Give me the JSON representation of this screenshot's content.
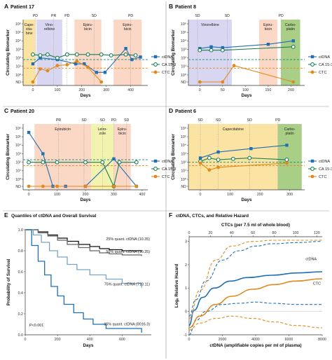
{
  "colors": {
    "ctdna": "#1f6fb2",
    "ca153": "#1a7f52",
    "ctc": "#e08a1e",
    "ca153_threshold": "#178a6a",
    "ctc_threshold": "#e08a1e",
    "capecitabine": "#fbe3a3",
    "vinorelbine": "#d8d6f0",
    "epirubicin": "#fbd7c6",
    "carboplatin": "#a9cf86",
    "letrozole": "#f3f3b0",
    "survival_q25": "#111111",
    "survival_q50": "#666666",
    "survival_q75": "#7aa3c4",
    "survival_q95": "#1f6fb2",
    "hazard_ctdna": "#1f6fb2",
    "hazard_ctc": "#e08a1e"
  },
  "chart_data": [
    {
      "letter": "A",
      "title": "Patient 17",
      "type": "line",
      "xlabel": "Days",
      "ylabel": "Circulating Biomarker",
      "xlim": [
        -40,
        470
      ],
      "xticks": [
        0,
        100,
        200,
        300,
        400
      ],
      "ytick_labels": [
        "ND",
        "10⁰",
        "10¹",
        "10²",
        "10³",
        "10⁴",
        "10⁵",
        "10⁶"
      ],
      "therapies": [
        {
          "label": "Cape-\ncita-\nbine",
          "start": -40,
          "end": 10,
          "color_key": "capecitabine"
        },
        {
          "label": "Vino-\nrelbine",
          "start": 15,
          "end": 120,
          "color_key": "vinorelbine"
        },
        {
          "label": "Epiru-\nbicin",
          "start": 170,
          "end": 280,
          "color_key": "epirubicin"
        },
        {
          "label": "Epiru-\nbicin",
          "start": 330,
          "end": 445,
          "color_key": "epirubicin"
        }
      ],
      "response_markers": [
        {
          "label": "PD",
          "day": 10
        },
        {
          "label": "PR",
          "day": 85
        },
        {
          "label": "PD",
          "day": 140
        },
        {
          "label": "SD",
          "day": 250
        },
        {
          "label": "PD",
          "day": 400
        }
      ],
      "thresholds": {
        "ca153": 1.8,
        "ctc": 0.8
      },
      "series": [
        {
          "name": "ctDNA",
          "color_key": "ctdna",
          "marker": "square",
          "x": [
            0,
            30,
            100,
            175,
            210,
            260,
            295,
            380,
            405,
            440
          ],
          "y": [
            1.3,
            2.0,
            1.8,
            1.3,
            1.3,
            0.3,
            0.3,
            3.1,
            1.8,
            2.1
          ]
        },
        {
          "name": "CA 15-3",
          "color_key": "ca153",
          "marker": "circle-open",
          "x": [
            0,
            30,
            60,
            100,
            140,
            180,
            225,
            280,
            320,
            380,
            420
          ],
          "y": [
            2.4,
            2.3,
            2.4,
            2.0,
            2.4,
            2.4,
            2.4,
            2.4,
            2.3,
            2.4,
            2.3
          ]
        },
        {
          "name": "CTC",
          "color_key": "ctc",
          "marker": "circle",
          "x": [
            0,
            30,
            60,
            100,
            140,
            180,
            225,
            280
          ],
          "y": [
            0,
            0.7,
            0.5,
            1.1,
            1.2,
            1.6,
            0.9,
            0
          ]
        }
      ]
    },
    {
      "letter": "B",
      "title": "Patient 8",
      "type": "line",
      "xlabel": "Days",
      "ylabel": "Circulating Biomarker",
      "xlim": [
        -25,
        230
      ],
      "xticks": [
        0,
        50,
        100,
        150,
        200
      ],
      "ytick_labels": [
        "ND",
        "10⁰",
        "10¹",
        "10²",
        "10³",
        "10⁴",
        "10⁵",
        "10⁶"
      ],
      "therapies": [
        {
          "label": "Vinorelbine",
          "start": -25,
          "end": 70,
          "color_key": "vinorelbine"
        },
        {
          "label": "Epiru-\nbicin",
          "start": 130,
          "end": 170,
          "color_key": "epirubicin"
        },
        {
          "label": "Carbo-\nplatin",
          "start": 178,
          "end": 220,
          "color_key": "carboplatin"
        }
      ],
      "response_markers": [
        {
          "label": "SD",
          "day": -5
        },
        {
          "label": "SD",
          "day": 60
        },
        {
          "label": "PD",
          "day": 178
        }
      ],
      "thresholds": {
        "ca153": 1.8,
        "ctc": 0.8
      },
      "series": [
        {
          "name": "ctDNA",
          "color_key": "ctdna",
          "marker": "square",
          "x": [
            0,
            25,
            50,
            150,
            205
          ],
          "y": [
            3.1,
            3.3,
            3.2,
            3.6,
            4.0
          ]
        },
        {
          "name": "CA 15-3",
          "color_key": "ca153",
          "marker": "circle-open",
          "x": [
            0,
            25,
            50,
            205
          ],
          "y": [
            2.9,
            2.9,
            2.9,
            3.3
          ]
        },
        {
          "name": "CTC",
          "color_key": "ctc",
          "marker": "circle",
          "x": [
            0,
            50,
            75,
            205
          ],
          "y": [
            0,
            0,
            1.1,
            0
          ]
        }
      ]
    },
    {
      "letter": "C",
      "title": "Patient 20",
      "type": "line",
      "xlabel": "Days",
      "ylabel": "Circulating Biomarker",
      "xlim": [
        -20,
        420
      ],
      "xticks": [
        0,
        100,
        200,
        300,
        400
      ],
      "ytick_labels": [
        "ND",
        "10⁰",
        "10¹",
        "10²",
        "10³",
        "10⁴",
        "10⁵",
        "10⁶"
      ],
      "therapies": [
        {
          "label": "Epirubicin",
          "start": 20,
          "end": 220,
          "color_key": "epirubicin"
        },
        {
          "label": "Letro-\nzole",
          "start": 220,
          "end": 300,
          "color_key": "letrozole"
        },
        {
          "label": "Epiru-\nbicin",
          "start": 300,
          "end": 360,
          "color_key": "epirubicin"
        }
      ],
      "response_markers": [
        {
          "label": "PR",
          "day": 105
        },
        {
          "label": "SD",
          "day": 195
        },
        {
          "label": "SD",
          "day": 260
        },
        {
          "label": "PD",
          "day": 300
        },
        {
          "label": "SD",
          "day": 345
        }
      ],
      "thresholds": {
        "ca153": 2.3,
        "ctc": 1.6
      },
      "series": [
        {
          "name": "ctDNA",
          "color_key": "ctdna",
          "marker": "square",
          "x": [
            0,
            50,
            85,
            130,
            200,
            300,
            380
          ],
          "y": [
            5.5,
            3.0,
            0,
            0,
            0,
            2.4,
            0
          ]
        },
        {
          "name": "CA 15-3",
          "color_key": "ca153",
          "marker": "circle-open",
          "x": [
            0,
            50,
            100,
            200,
            260,
            300,
            320,
            380
          ],
          "y": [
            2.0,
            2.0,
            2.0,
            2.0,
            2.0,
            0,
            2.0,
            2.0
          ]
        },
        {
          "name": "CTC",
          "color_key": "ctc",
          "marker": "circle",
          "x": [
            0,
            50,
            100,
            200,
            300,
            380
          ],
          "y": [
            0,
            0,
            0,
            0,
            0,
            0
          ]
        }
      ]
    },
    {
      "letter": "D",
      "title": "Patient 6",
      "type": "line",
      "xlabel": "Days",
      "ylabel": "Circulating Biomarker",
      "xlim": [
        -40,
        350
      ],
      "xticks": [
        0,
        100,
        200,
        300
      ],
      "ytick_labels": [
        "ND",
        "10⁰",
        "10¹",
        "10²",
        "10³",
        "10⁴",
        "10⁵",
        "10⁶"
      ],
      "therapies": [
        {
          "label": "Capecitabine",
          "start": -40,
          "end": 260,
          "color_key": "capecitabine"
        },
        {
          "label": "Carbo-\nplatin",
          "start": 260,
          "end": 340,
          "color_key": "carboplatin"
        }
      ],
      "response_markers": [
        {
          "label": "SD",
          "day": 0
        },
        {
          "label": "SD",
          "day": 60
        },
        {
          "label": "SD",
          "day": 165
        },
        {
          "label": "PD",
          "day": 260
        }
      ],
      "thresholds": {
        "ca153": 2.0,
        "ctc": 1.6
      },
      "series": [
        {
          "name": "ctDNA",
          "color_key": "ctdna",
          "marker": "square",
          "x": [
            0,
            60,
            170,
            290
          ],
          "y": [
            2.5,
            3.2,
            3.6,
            4.0
          ]
        },
        {
          "name": "CA 15-3",
          "color_key": "ca153",
          "marker": "circle-open",
          "x": [
            0,
            30,
            60,
            110,
            165,
            290
          ],
          "y": [
            2.1,
            2.5,
            2.3,
            2.4,
            2.5,
            2.3
          ]
        },
        {
          "name": "CTC",
          "color_key": "ctc",
          "marker": "circle",
          "x": [
            0,
            30,
            60,
            290
          ],
          "y": [
            1.9,
            1.1,
            1.4,
            1.9
          ]
        }
      ]
    },
    {
      "letter": "E",
      "title": "Quantiles of ctDNA and Overall Survival",
      "type": "line",
      "xlabel": "Days",
      "ylabel": "Probability of Survival",
      "xlim": [
        0,
        780
      ],
      "ylim": [
        0,
        1.0
      ],
      "xticks": [
        0,
        200,
        400,
        600
      ],
      "yticks": [
        0.0,
        0.2,
        0.4,
        0.6,
        0.8,
        1.0
      ],
      "ytick_labels": [
        "0.0",
        "0.2",
        "0.4",
        "0.6",
        "0.8",
        "1.0"
      ],
      "annotation": "P<0.001",
      "series": [
        {
          "name": "25% quant. ctDNA (10.35)",
          "color_key": "survival_q25",
          "x": [
            0,
            80,
            140,
            200,
            260,
            330,
            400,
            460,
            520,
            600,
            720
          ],
          "y": [
            1.0,
            0.98,
            0.95,
            0.92,
            0.89,
            0.86,
            0.84,
            0.82,
            0.81,
            0.8,
            0.79
          ]
        },
        {
          "name": "50% quant. ctDNA (10.35)",
          "color_key": "survival_q50",
          "x": [
            0,
            80,
            140,
            200,
            260,
            330,
            400,
            460,
            520,
            600,
            720
          ],
          "y": [
            1.0,
            0.97,
            0.94,
            0.9,
            0.86,
            0.83,
            0.8,
            0.78,
            0.77,
            0.76,
            0.75
          ]
        },
        {
          "name": "75% quant. ctDNA (710.11)",
          "color_key": "survival_q75",
          "x": [
            0,
            50,
            100,
            150,
            200,
            260,
            320,
            400,
            500,
            600,
            720
          ],
          "y": [
            1.0,
            0.95,
            0.88,
            0.8,
            0.74,
            0.67,
            0.62,
            0.57,
            0.53,
            0.49,
            0.45
          ]
        },
        {
          "name": "95% quant. ctDNA (8016.3)",
          "color_key": "survival_q95",
          "x": [
            0,
            40,
            80,
            120,
            160,
            200,
            240,
            300,
            360,
            420,
            500,
            720
          ],
          "y": [
            1.0,
            0.85,
            0.7,
            0.57,
            0.46,
            0.37,
            0.29,
            0.21,
            0.15,
            0.1,
            0.06,
            0.02
          ]
        }
      ]
    },
    {
      "letter": "F",
      "title": "ctDNA, CTCs, and Relative Hazard",
      "type": "line",
      "xlabel": "ctDNA (amplifiable copies per ml of plasma)",
      "x2label": "CTCs (per 7.5 ml of whole blood)",
      "ylabel": "Logₑ Relative Hazard",
      "xlim": [
        0,
        8000
      ],
      "x2lim": [
        0,
        125
      ],
      "ylim": [
        -1,
        3.2
      ],
      "xticks": [
        0,
        2000,
        4000,
        6000,
        8000
      ],
      "x2ticks": [
        0,
        20,
        40,
        60,
        80,
        100,
        120
      ],
      "yticks": [
        -1,
        0,
        1,
        2,
        3
      ],
      "series": [
        {
          "name": "ctDNA",
          "color_key": "hazard_ctdna",
          "style": "solid",
          "x": [
            0,
            300,
            800,
            1500,
            2500,
            3500,
            5000,
            6500,
            8000
          ],
          "y": [
            -0.6,
            0.05,
            0.6,
            1.0,
            1.3,
            1.45,
            1.55,
            1.65,
            1.7
          ]
        },
        {
          "name": "ctDNA CI upper",
          "color_key": "hazard_ctdna",
          "style": "dashed",
          "x": [
            0,
            400,
            1000,
            2000,
            3000,
            4000,
            5000,
            6500,
            8000
          ],
          "y": [
            -0.2,
            0.5,
            1.3,
            2.2,
            2.6,
            2.8,
            2.9,
            2.95,
            3.0
          ]
        },
        {
          "name": "ctDNA CI lower",
          "color_key": "hazard_ctdna",
          "style": "dashed",
          "x": [
            0,
            400,
            1000,
            2000,
            3000,
            4000,
            5000,
            6500,
            8000
          ],
          "y": [
            -1.0,
            -0.4,
            0.0,
            0.3,
            0.35,
            0.4,
            0.35,
            0.3,
            0.3
          ]
        },
        {
          "name": "CTC",
          "color_key": "hazard_ctc",
          "style": "solid",
          "x": [
            0,
            10,
            25,
            40,
            60,
            80,
            100,
            125
          ],
          "y": [
            -0.7,
            -0.2,
            0.3,
            0.65,
            0.95,
            1.15,
            1.3,
            1.4
          ]
        },
        {
          "name": "CTC CI upper",
          "color_key": "hazard_ctc",
          "style": "dashed",
          "x": [
            0,
            10,
            25,
            40,
            60,
            80,
            100,
            125
          ],
          "y": [
            -0.3,
            0.9,
            2.2,
            2.8,
            3.0,
            3.05,
            3.05,
            3.05
          ]
        },
        {
          "name": "CTC CI lower",
          "color_key": "hazard_ctc",
          "style": "dashed",
          "x": [
            0,
            10,
            25,
            40,
            60,
            80,
            100,
            125
          ],
          "y": [
            -0.8,
            -0.5,
            -0.3,
            -0.2,
            -0.3,
            -0.45,
            -0.6,
            -0.7
          ]
        }
      ]
    }
  ],
  "legend_labels": {
    "ctdna": "ctDNA",
    "ca153": "CA 15-3",
    "ctc": "CTC"
  }
}
